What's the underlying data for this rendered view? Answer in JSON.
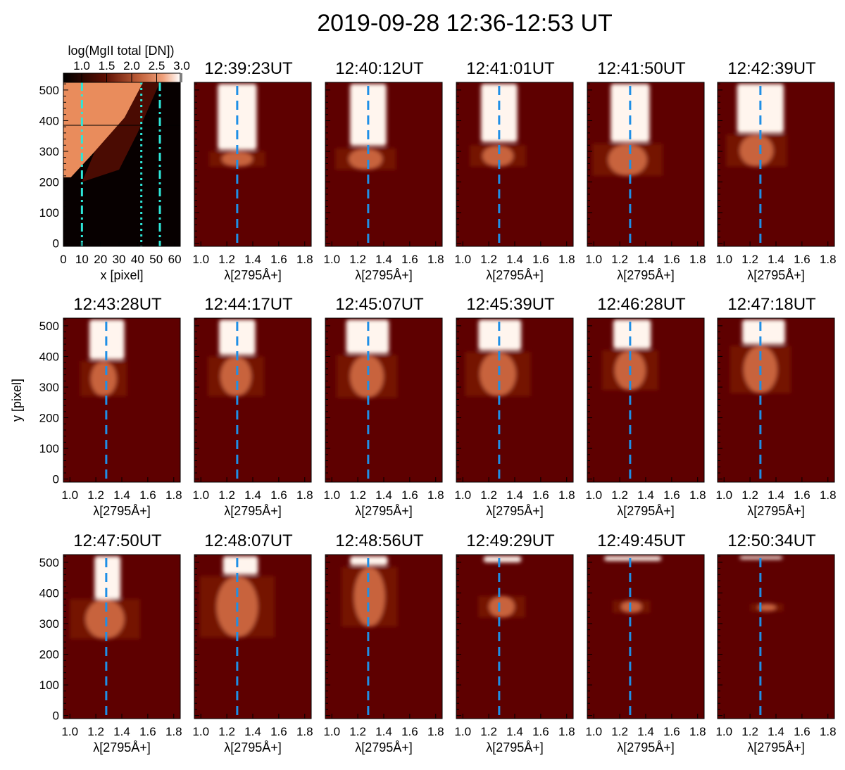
{
  "figure": {
    "title": "2019-09-28 12:36-12:53 UT",
    "colors": {
      "background_dark": "#5e0000",
      "mid_orange": "#c8643c",
      "saturated": "#fff5ee",
      "dashed_line": "#1f8fe6",
      "map_lines": "#2ee6d8"
    }
  },
  "context_map": {
    "colorbar_label": "log(MgII total [DN])",
    "colorbar_ticks": [
      "1.0",
      "1.5",
      "2.0",
      "2.5",
      "3.0"
    ],
    "xlabel": "x [pixel]",
    "xticks": [
      "0",
      "10",
      "20",
      "30",
      "40",
      "50",
      "60"
    ],
    "yticks": [
      "0",
      "100",
      "200",
      "300",
      "400",
      "500"
    ],
    "slit_positions_x": [
      10,
      42,
      52
    ]
  },
  "ylabel": "y [pixel]",
  "xlabel": "λ[2795Å+]",
  "xticks": [
    "1.0",
    "1.2",
    "1.4",
    "1.6",
    "1.8"
  ],
  "yticks": [
    "0",
    "100",
    "200",
    "300",
    "400",
    "500"
  ],
  "chart_data": {
    "type": "heatmap",
    "description_of_axes": "x: wavelength offset from 2795 Å (0.95–1.85), y: slit position (pixels 0–520)",
    "xlim": [
      0.95,
      1.85
    ],
    "ylim": [
      -10,
      525
    ],
    "reference_wavelength": 1.28,
    "panels": [
      {
        "time": "12:39:23UT",
        "sat_top": 520,
        "sat_bottom": 305,
        "sat_left": 1.13,
        "sat_right": 1.43,
        "ext_top": 300,
        "ext_bottom": 250,
        "ext_center": 1.28,
        "ext_halfwidth": 0.12
      },
      {
        "time": "12:40:12UT",
        "sat_top": 520,
        "sat_bottom": 318,
        "sat_left": 1.14,
        "sat_right": 1.42,
        "ext_top": 310,
        "ext_bottom": 240,
        "ext_center": 1.26,
        "ext_halfwidth": 0.13
      },
      {
        "time": "12:41:01UT",
        "sat_top": 520,
        "sat_bottom": 330,
        "sat_left": 1.14,
        "sat_right": 1.42,
        "ext_top": 320,
        "ext_bottom": 250,
        "ext_center": 1.27,
        "ext_halfwidth": 0.12
      },
      {
        "time": "12:41:50UT",
        "sat_top": 520,
        "sat_bottom": 330,
        "sat_left": 1.13,
        "sat_right": 1.43,
        "ext_top": 325,
        "ext_bottom": 220,
        "ext_center": 1.26,
        "ext_halfwidth": 0.15
      },
      {
        "time": "12:42:39UT",
        "sat_top": 520,
        "sat_bottom": 360,
        "sat_left": 1.1,
        "sat_right": 1.46,
        "ext_top": 355,
        "ext_bottom": 250,
        "ext_center": 1.25,
        "ext_halfwidth": 0.13
      },
      {
        "time": "12:43:28UT",
        "sat_top": 520,
        "sat_bottom": 390,
        "sat_left": 1.15,
        "sat_right": 1.42,
        "ext_top": 385,
        "ext_bottom": 270,
        "ext_center": 1.26,
        "ext_halfwidth": 0.1
      },
      {
        "time": "12:44:17UT",
        "sat_top": 520,
        "sat_bottom": 405,
        "sat_left": 1.14,
        "sat_right": 1.42,
        "ext_top": 400,
        "ext_bottom": 270,
        "ext_center": 1.27,
        "ext_halfwidth": 0.12
      },
      {
        "time": "12:45:07UT",
        "sat_top": 520,
        "sat_bottom": 410,
        "sat_left": 1.11,
        "sat_right": 1.44,
        "ext_top": 405,
        "ext_bottom": 265,
        "ext_center": 1.27,
        "ext_halfwidth": 0.13
      },
      {
        "time": "12:45:39UT",
        "sat_top": 520,
        "sat_bottom": 420,
        "sat_left": 1.12,
        "sat_right": 1.45,
        "ext_top": 415,
        "ext_bottom": 270,
        "ext_center": 1.27,
        "ext_halfwidth": 0.14
      },
      {
        "time": "12:46:28UT",
        "sat_top": 520,
        "sat_bottom": 425,
        "sat_left": 1.15,
        "sat_right": 1.44,
        "ext_top": 420,
        "ext_bottom": 290,
        "ext_center": 1.28,
        "ext_halfwidth": 0.12
      },
      {
        "time": "12:47:18UT",
        "sat_top": 520,
        "sat_bottom": 440,
        "sat_left": 1.14,
        "sat_right": 1.47,
        "ext_top": 435,
        "ext_bottom": 280,
        "ext_center": 1.28,
        "ext_halfwidth": 0.13
      },
      {
        "time": "12:47:50UT",
        "sat_top": 520,
        "sat_bottom": 380,
        "sat_left": 1.19,
        "sat_right": 1.39,
        "ext_top": 380,
        "ext_bottom": 250,
        "ext_center": 1.27,
        "ext_halfwidth": 0.15
      },
      {
        "time": "12:48:07UT",
        "sat_top": 520,
        "sat_bottom": 460,
        "sat_left": 1.17,
        "sat_right": 1.44,
        "ext_top": 455,
        "ext_bottom": 255,
        "ext_center": 1.28,
        "ext_halfwidth": 0.16
      },
      {
        "time": "12:48:56UT",
        "sat_top": 520,
        "sat_bottom": 490,
        "sat_left": 1.14,
        "sat_right": 1.43,
        "ext_top": 485,
        "ext_bottom": 290,
        "ext_center": 1.29,
        "ext_halfwidth": 0.12
      },
      {
        "time": "12:49:29UT",
        "sat_top": 520,
        "sat_bottom": 500,
        "sat_left": 1.16,
        "sat_right": 1.45,
        "ext_top": 390,
        "ext_bottom": 320,
        "ext_center": 1.3,
        "ext_halfwidth": 0.1
      },
      {
        "time": "12:49:45UT",
        "sat_top": 520,
        "sat_bottom": 505,
        "sat_left": 1.08,
        "sat_right": 1.52,
        "ext_top": 375,
        "ext_bottom": 335,
        "ext_center": 1.29,
        "ext_halfwidth": 0.08
      },
      {
        "time": "12:50:34UT",
        "sat_top": 520,
        "sat_bottom": 510,
        "sat_left": 1.12,
        "sat_right": 1.45,
        "ext_top": 365,
        "ext_bottom": 340,
        "ext_center": 1.33,
        "ext_halfwidth": 0.07
      }
    ]
  }
}
